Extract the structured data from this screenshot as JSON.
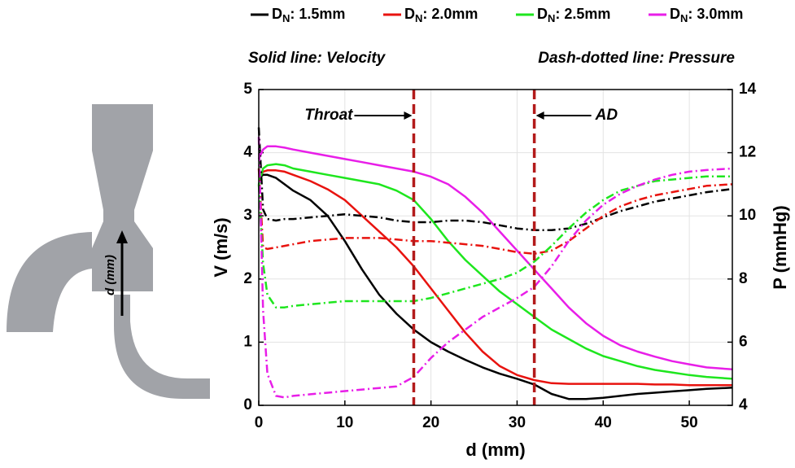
{
  "diagram_label": "d (mm)",
  "chart_data": {
    "type": "line",
    "xlabel": "d (mm)",
    "ylabel": "V (m/s)",
    "y2label": "P (mmHg)",
    "notes": [
      "Solid line: Velocity",
      "Dash-dotted line: Pressure"
    ],
    "annotations": [
      {
        "text": "Throat",
        "x": 18
      },
      {
        "text": "AD",
        "x": 32
      }
    ],
    "xlim": [
      0,
      55
    ],
    "xticks": [
      0,
      10,
      20,
      30,
      40,
      50
    ],
    "ylim": [
      0,
      5
    ],
    "yticks": [
      0,
      1,
      2,
      3,
      4,
      5
    ],
    "y2lim": [
      4,
      14
    ],
    "y2ticks": [
      4,
      6,
      8,
      10,
      12,
      14
    ],
    "grid": true,
    "x": [
      0,
      0.5,
      1,
      2,
      3,
      4,
      6,
      8,
      10,
      12,
      14,
      16,
      18,
      20,
      22,
      24,
      26,
      28,
      30,
      32,
      34,
      36,
      38,
      40,
      42,
      44,
      46,
      48,
      50,
      52,
      55
    ],
    "series": [
      {
        "name": "DN: 1.5mm",
        "color": "#000000",
        "values": [
          3.6,
          3.65,
          3.65,
          3.6,
          3.5,
          3.4,
          3.25,
          3.0,
          2.6,
          2.15,
          1.75,
          1.45,
          1.2,
          1.0,
          0.85,
          0.72,
          0.6,
          0.5,
          0.42,
          0.33,
          0.18,
          0.1,
          0.1,
          0.12,
          0.15,
          0.18,
          0.2,
          0.22,
          0.24,
          0.26,
          0.28
        ]
      },
      {
        "name": "DN: 2.0mm",
        "color": "#e8130f",
        "values": [
          3.6,
          3.7,
          3.72,
          3.72,
          3.7,
          3.65,
          3.55,
          3.42,
          3.25,
          3.0,
          2.75,
          2.5,
          2.2,
          1.85,
          1.5,
          1.15,
          0.85,
          0.62,
          0.48,
          0.4,
          0.35,
          0.34,
          0.34,
          0.34,
          0.34,
          0.34,
          0.33,
          0.33,
          0.32,
          0.32,
          0.32
        ]
      },
      {
        "name": "DN: 2.5mm",
        "color": "#1ee61e",
        "values": [
          3.5,
          3.75,
          3.8,
          3.82,
          3.8,
          3.75,
          3.7,
          3.65,
          3.6,
          3.55,
          3.5,
          3.4,
          3.25,
          2.95,
          2.6,
          2.3,
          2.05,
          1.8,
          1.6,
          1.4,
          1.2,
          1.05,
          0.9,
          0.78,
          0.7,
          0.62,
          0.56,
          0.52,
          0.48,
          0.45,
          0.42
        ]
      },
      {
        "name": "DN: 3.0mm",
        "color": "#e81ee8",
        "values": [
          3.9,
          4.05,
          4.1,
          4.1,
          4.08,
          4.05,
          4.0,
          3.95,
          3.9,
          3.85,
          3.8,
          3.75,
          3.7,
          3.62,
          3.5,
          3.3,
          3.05,
          2.75,
          2.45,
          2.15,
          1.85,
          1.55,
          1.3,
          1.1,
          0.95,
          0.85,
          0.77,
          0.7,
          0.65,
          0.6,
          0.57
        ]
      }
    ],
    "series_y2": [
      {
        "axis": "y2",
        "color": "#000000",
        "values": [
          12.8,
          10.2,
          9.9,
          9.85,
          9.9,
          9.9,
          9.95,
          10.0,
          10.05,
          10.0,
          9.95,
          9.85,
          9.8,
          9.8,
          9.85,
          9.85,
          9.8,
          9.7,
          9.6,
          9.55,
          9.55,
          9.6,
          9.75,
          9.95,
          10.15,
          10.3,
          10.45,
          10.55,
          10.65,
          10.75,
          10.85
        ]
      },
      {
        "axis": "y2",
        "color": "#e8130f",
        "values": [
          11.5,
          9.0,
          8.95,
          9.0,
          9.05,
          9.1,
          9.2,
          9.25,
          9.3,
          9.3,
          9.3,
          9.25,
          9.2,
          9.2,
          9.15,
          9.1,
          9.05,
          8.95,
          8.85,
          8.8,
          8.9,
          9.2,
          9.6,
          10.0,
          10.3,
          10.5,
          10.65,
          10.75,
          10.85,
          10.95,
          11.0
        ]
      },
      {
        "axis": "y2",
        "color": "#1ee61e",
        "values": [
          11.0,
          8.5,
          7.5,
          7.1,
          7.1,
          7.15,
          7.2,
          7.25,
          7.3,
          7.3,
          7.3,
          7.3,
          7.3,
          7.4,
          7.55,
          7.7,
          7.85,
          8.0,
          8.2,
          8.55,
          9.05,
          9.6,
          10.1,
          10.5,
          10.8,
          10.95,
          11.1,
          11.15,
          11.2,
          11.25,
          11.25
        ]
      },
      {
        "axis": "y2",
        "color": "#e81ee8",
        "values": [
          12.5,
          7.0,
          5.0,
          4.3,
          4.25,
          4.3,
          4.35,
          4.4,
          4.45,
          4.5,
          4.55,
          4.6,
          4.9,
          5.5,
          6.0,
          6.4,
          6.8,
          7.1,
          7.4,
          7.75,
          8.4,
          9.2,
          9.85,
          10.35,
          10.7,
          10.95,
          11.15,
          11.3,
          11.4,
          11.45,
          11.5
        ]
      }
    ]
  }
}
